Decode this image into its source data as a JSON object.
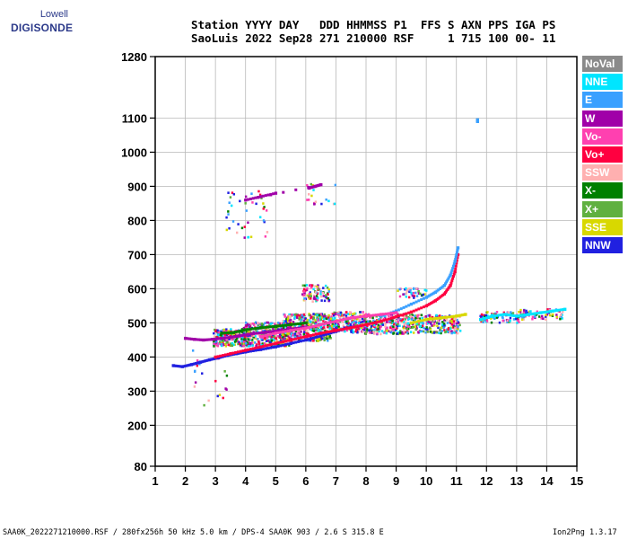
{
  "logo": {
    "top": "Lowell",
    "main": "DIGISONDE"
  },
  "header": {
    "line1": "Station YYYY DAY   DDD HHMMSS P1  FFS S AXN PPS IGA PS",
    "line2": "SaoLuis 2022 Sep28 271 210000 RSF     1 715 100 00- 11"
  },
  "legend": [
    {
      "label": "NoVal",
      "color": "#8a8a8a"
    },
    {
      "label": "NNE",
      "color": "#00e5ff"
    },
    {
      "label": "E",
      "color": "#3aa0ff"
    },
    {
      "label": "W",
      "color": "#a000a8"
    },
    {
      "label": "Vo-",
      "color": "#ff40b0"
    },
    {
      "label": "Vo+",
      "color": "#ff0040"
    },
    {
      "label": "SSW",
      "color": "#ffb0b0"
    },
    {
      "label": "X-",
      "color": "#008000"
    },
    {
      "label": "X+",
      "color": "#60b040"
    },
    {
      "label": "SSE",
      "color": "#d8d800"
    },
    {
      "label": "NNW",
      "color": "#2020e0"
    }
  ],
  "footer": {
    "left": "SAA0K_2022271210000.RSF / 280fx256h 50 kHz 5.0 km / DPS-4 SAA0K 903 / 2.6 S 315.8 E",
    "right": "Ion2Png 1.3.17"
  },
  "chart_data": {
    "type": "scatter",
    "xlim": [
      1,
      15
    ],
    "ylim": [
      80,
      1280
    ],
    "xticks": [
      "1",
      "2",
      "3",
      "4",
      "5",
      "6",
      "7",
      "8",
      "9",
      "10",
      "11",
      "12",
      "13",
      "14",
      "15"
    ],
    "yticks": [
      {
        "v": 80,
        "label": "80"
      },
      {
        "v": 200,
        "label": "200"
      },
      {
        "v": 300,
        "label": "300"
      },
      {
        "v": 400,
        "label": "400"
      },
      {
        "v": 500,
        "label": "500"
      },
      {
        "v": 600,
        "label": "600"
      },
      {
        "v": 700,
        "label": "700"
      },
      {
        "v": 800,
        "label": "800"
      },
      {
        "v": 900,
        "label": "900"
      },
      {
        "v": 1000,
        "label": "1000"
      },
      {
        "v": 1100,
        "label": "1100"
      },
      {
        "v": 1280,
        "label": "1280"
      }
    ],
    "traces": [
      {
        "name": "NNW",
        "points": [
          [
            1.6,
            375
          ],
          [
            1.9,
            372
          ],
          [
            2.2,
            378
          ],
          [
            2.5,
            385
          ],
          [
            2.8,
            392
          ],
          [
            3.1,
            398
          ],
          [
            3.4,
            405
          ],
          [
            3.7,
            410
          ],
          [
            4.0,
            415
          ],
          [
            4.5,
            422
          ],
          [
            5.0,
            430
          ],
          [
            5.5,
            440
          ],
          [
            6.0,
            450
          ],
          [
            6.5,
            462
          ],
          [
            7.0,
            475
          ],
          [
            7.5,
            488
          ]
        ]
      },
      {
        "name": "W",
        "points": [
          [
            2.0,
            455
          ],
          [
            2.3,
            452
          ],
          [
            2.6,
            450
          ],
          [
            2.9,
            452
          ],
          [
            3.2,
            455
          ],
          [
            3.5,
            458
          ],
          [
            3.8,
            462
          ],
          [
            4.2,
            468
          ],
          [
            4.6,
            472
          ],
          [
            5.0,
            476
          ],
          [
            5.5,
            482
          ],
          [
            6.0,
            488
          ]
        ]
      },
      {
        "name": "Vo+",
        "points": [
          [
            3.0,
            400
          ],
          [
            3.5,
            410
          ],
          [
            4.0,
            420
          ],
          [
            4.5,
            430
          ],
          [
            5.0,
            440
          ],
          [
            5.5,
            450
          ],
          [
            6.0,
            460
          ],
          [
            6.5,
            470
          ],
          [
            7.0,
            478
          ],
          [
            7.5,
            486
          ],
          [
            8.0,
            495
          ],
          [
            8.5,
            505
          ],
          [
            9.0,
            518
          ],
          [
            9.5,
            532
          ],
          [
            10.0,
            550
          ],
          [
            10.3,
            565
          ],
          [
            10.6,
            585
          ],
          [
            10.8,
            610
          ],
          [
            10.95,
            650
          ],
          [
            11.05,
            700
          ]
        ]
      },
      {
        "name": "E",
        "points": [
          [
            8.5,
            520
          ],
          [
            9.0,
            535
          ],
          [
            9.5,
            555
          ],
          [
            10.0,
            575
          ],
          [
            10.3,
            590
          ],
          [
            10.6,
            610
          ],
          [
            10.8,
            640
          ],
          [
            10.95,
            680
          ],
          [
            11.05,
            720
          ]
        ]
      },
      {
        "name": "Vo-",
        "points": [
          [
            4.5,
            460
          ],
          [
            5.0,
            470
          ],
          [
            5.5,
            478
          ],
          [
            6.0,
            485
          ],
          [
            6.5,
            495
          ],
          [
            7.0,
            505
          ],
          [
            7.5,
            515
          ],
          [
            8.0,
            520
          ],
          [
            8.5,
            525
          ],
          [
            9.0,
            530
          ]
        ]
      },
      {
        "name": "X-",
        "points": [
          [
            3.2,
            470
          ],
          [
            3.6,
            472
          ],
          [
            4.0,
            480
          ],
          [
            4.5,
            486
          ],
          [
            5.0,
            490
          ],
          [
            5.5,
            495
          ],
          [
            6.0,
            500
          ]
        ]
      },
      {
        "name": "SSE",
        "points": [
          [
            9.5,
            500
          ],
          [
            10.0,
            510
          ],
          [
            10.5,
            515
          ],
          [
            11.0,
            520
          ],
          [
            11.3,
            525
          ]
        ]
      },
      {
        "name": "NNE",
        "points": [
          [
            11.8,
            510
          ],
          [
            12.2,
            520
          ],
          [
            12.6,
            525
          ],
          [
            13.0,
            520
          ],
          [
            13.4,
            525
          ],
          [
            13.8,
            530
          ],
          [
            14.2,
            535
          ],
          [
            14.6,
            540
          ]
        ]
      },
      {
        "name": "W",
        "points": [
          [
            6.1,
            895
          ],
          [
            6.3,
            900
          ],
          [
            6.5,
            905
          ],
          [
            4.0,
            860
          ],
          [
            4.5,
            870
          ],
          [
            5.0,
            880
          ]
        ]
      },
      {
        "name": "E",
        "points": [
          [
            11.7,
            1090
          ],
          [
            11.7,
            1095
          ]
        ]
      }
    ]
  }
}
